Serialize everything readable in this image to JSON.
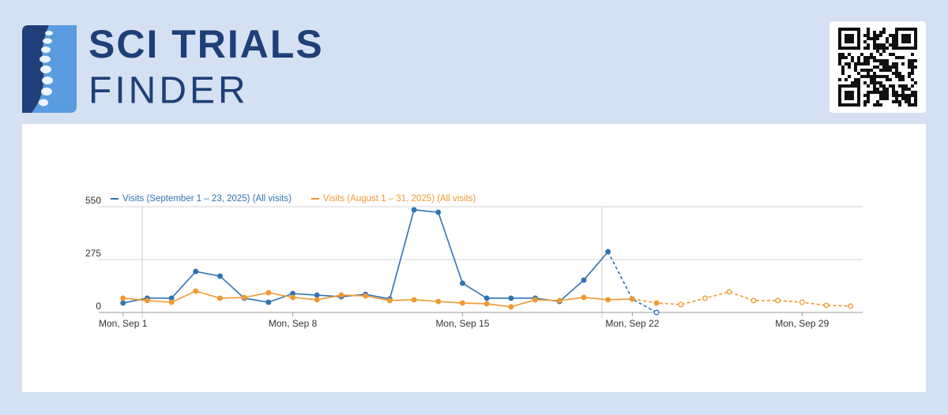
{
  "header": {
    "logo_line1": "SCI TRIALS",
    "logo_line2": "FINDER"
  },
  "chart_data": {
    "type": "line",
    "x": [
      1,
      2,
      3,
      4,
      5,
      6,
      7,
      8,
      9,
      10,
      11,
      12,
      13,
      14,
      15,
      16,
      17,
      18,
      19,
      20,
      21,
      22,
      23,
      24,
      25,
      26,
      27,
      28,
      29,
      30,
      31
    ],
    "xlim": [
      0,
      31.5
    ],
    "xticks": [
      {
        "value": 1,
        "label": "Mon, Sep 1"
      },
      {
        "value": 8,
        "label": "Mon, Sep 8"
      },
      {
        "value": 15,
        "label": "Mon, Sep 15"
      },
      {
        "value": 22,
        "label": "Mon, Sep 22"
      },
      {
        "value": 29,
        "label": "Mon, Sep 29"
      }
    ],
    "ylim": [
      0,
      550
    ],
    "yticks": [
      0,
      275,
      550
    ],
    "grid": true,
    "legend": "top-left",
    "series": [
      {
        "name": "Visits (September 1 – 23, 2025) (All visits)",
        "color": "#2f73b4",
        "dashed_from": 20,
        "values": [
          49,
          74,
          74,
          213,
          189,
          74,
          53,
          98,
          90,
          82,
          94,
          70,
          534,
          521,
          152,
          74,
          74,
          74,
          57,
          168,
          316,
          70,
          0,
          null,
          null,
          null,
          null,
          null,
          null,
          null,
          null
        ]
      },
      {
        "name": "Visits (August 1 – 31, 2025) (All visits)",
        "color": "#f0992f",
        "dashed_from": 21,
        "values": [
          74,
          62,
          53,
          111,
          74,
          78,
          103,
          78,
          66,
          90,
          86,
          62,
          66,
          57,
          49,
          45,
          29,
          66,
          62,
          78,
          66,
          70,
          49,
          41,
          74,
          107,
          62,
          62,
          53,
          37,
          33
        ]
      }
    ]
  }
}
